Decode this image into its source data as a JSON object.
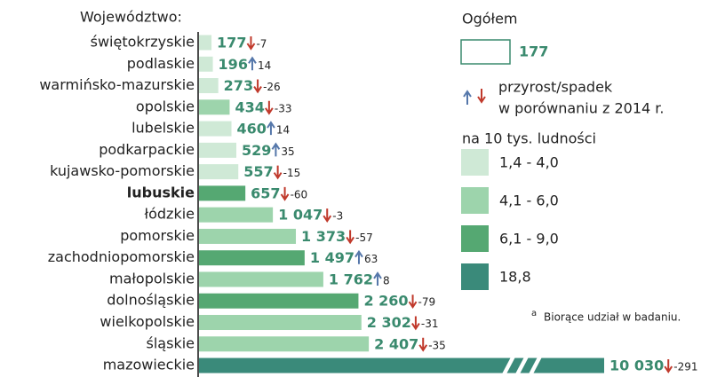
{
  "chart_data": {
    "type": "bar",
    "orientation": "horizontal",
    "category_title": "Województwo:",
    "categories": [
      "świętokrzyskie",
      "podlaskie",
      "warmińsko-mazurskie",
      "opolskie",
      "lubelskie",
      "podkarpackie",
      "kujawsko-pomorskie",
      "lubuskie",
      "łódzkie",
      "pomorskie",
      "zachodniopomorskie",
      "małopolskie",
      "dolnośląskie",
      "wielkopolskie",
      "śląskie",
      "mazowieckie"
    ],
    "highlight_index": 7,
    "values": [
      177,
      196,
      273,
      434,
      460,
      529,
      557,
      657,
      1047,
      1373,
      1497,
      1762,
      2260,
      2302,
      2407,
      10030
    ],
    "value_labels": [
      "177",
      "196",
      "273",
      "434",
      "460",
      "529",
      "557",
      "657",
      "1 047",
      "1 373",
      "1 497",
      "1 762",
      "2 260",
      "2 302",
      "2 407",
      "10 030"
    ],
    "changes": [
      -7,
      14,
      -26,
      -33,
      14,
      35,
      -15,
      -60,
      -3,
      -57,
      63,
      8,
      -79,
      -31,
      -35,
      -291
    ],
    "colors": [
      "#cfe9d6",
      "#cfe9d6",
      "#cfe9d6",
      "#9dd4ac",
      "#cfe9d6",
      "#cfe9d6",
      "#cfe9d6",
      "#55a872",
      "#9dd4ac",
      "#9dd4ac",
      "#55a872",
      "#9dd4ac",
      "#55a872",
      "#9dd4ac",
      "#9dd4ac",
      "#3a8a7a"
    ],
    "legend": {
      "total_title": "Ogółem",
      "total_sample": "177",
      "change_title": [
        "przyrost/spadek",
        "w porównaniu z 2014 r."
      ],
      "classes_title": "na 10 tys. ludności",
      "classes": [
        {
          "label": "1,4 - 4,0",
          "color": "#cfe9d6"
        },
        {
          "label": "4,1 - 6,0",
          "color": "#9dd4ac"
        },
        {
          "label": "6,1 - 9,0",
          "color": "#55a872"
        },
        {
          "label": "18,8",
          "color": "#3a8a7a"
        }
      ]
    },
    "footnote": {
      "marker": "a",
      "text": "Biorące udział w badaniu."
    }
  }
}
